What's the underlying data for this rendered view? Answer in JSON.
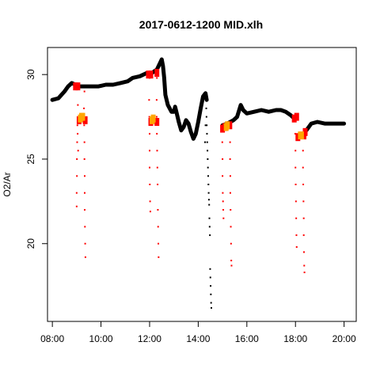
{
  "chart_data": {
    "type": "scatter",
    "title": "2017-0612-1200 MID.xlh",
    "xlabel": "",
    "ylabel": "O2/Ar",
    "xlim": [
      7.8,
      20.5
    ],
    "ylim": [
      15.4,
      31.6
    ],
    "x_ticks": [
      {
        "value": 8,
        "label": "08:00"
      },
      {
        "value": 10,
        "label": "10:00"
      },
      {
        "value": 12,
        "label": "12:00"
      },
      {
        "value": 14,
        "label": "14:00"
      },
      {
        "value": 16,
        "label": "16:00"
      },
      {
        "value": 18,
        "label": "18:00"
      },
      {
        "value": 20,
        "label": "20:00"
      }
    ],
    "y_ticks": [
      {
        "value": 20,
        "label": "20"
      },
      {
        "value": 25,
        "label": "25"
      },
      {
        "value": 30,
        "label": "30"
      }
    ],
    "grid": false,
    "colors": {
      "main": "#000000",
      "spike": "#ff0000",
      "highlight": "#ffa500"
    },
    "series": [
      {
        "role": "main",
        "color": "#000000",
        "points": [
          [
            8.0,
            28.5
          ],
          [
            8.25,
            28.6
          ],
          [
            8.5,
            29.0
          ],
          [
            8.65,
            29.3
          ],
          [
            8.8,
            29.5
          ],
          [
            8.95,
            29.4
          ],
          [
            9.05,
            29.3
          ],
          [
            9.35,
            29.3
          ],
          [
            9.6,
            29.3
          ],
          [
            9.9,
            29.3
          ],
          [
            10.2,
            29.4
          ],
          [
            10.5,
            29.4
          ],
          [
            10.8,
            29.5
          ],
          [
            11.1,
            29.6
          ],
          [
            11.3,
            29.8
          ],
          [
            11.6,
            29.9
          ],
          [
            11.9,
            30.1
          ],
          [
            12.0,
            30.0
          ],
          [
            12.3,
            30.3
          ],
          [
            12.4,
            30.6
          ],
          [
            12.5,
            30.9
          ],
          [
            12.55,
            30.5
          ],
          [
            12.6,
            29.8
          ],
          [
            12.65,
            28.8
          ],
          [
            12.75,
            28.2
          ],
          [
            12.9,
            27.8
          ],
          [
            13.0,
            27.8
          ],
          [
            13.05,
            28.1
          ],
          [
            13.1,
            27.8
          ],
          [
            13.2,
            27.2
          ],
          [
            13.3,
            26.7
          ],
          [
            13.4,
            26.9
          ],
          [
            13.5,
            27.3
          ],
          [
            13.6,
            27.1
          ],
          [
            13.7,
            26.6
          ],
          [
            13.8,
            26.2
          ],
          [
            13.9,
            26.5
          ],
          [
            14.0,
            27.2
          ],
          [
            14.1,
            28.0
          ],
          [
            14.2,
            28.7
          ],
          [
            14.3,
            28.9
          ],
          [
            14.35,
            28.5
          ],
          [
            15.0,
            27.0
          ],
          [
            15.2,
            27.1
          ],
          [
            15.45,
            27.3
          ],
          [
            15.6,
            27.5
          ],
          [
            15.75,
            28.2
          ],
          [
            15.85,
            27.9
          ],
          [
            16.0,
            27.7
          ],
          [
            16.3,
            27.8
          ],
          [
            16.6,
            27.9
          ],
          [
            16.9,
            27.8
          ],
          [
            17.2,
            27.9
          ],
          [
            17.4,
            27.9
          ],
          [
            17.6,
            27.8
          ],
          [
            17.8,
            27.6
          ],
          [
            17.95,
            27.4
          ],
          [
            18.45,
            26.7
          ],
          [
            18.65,
            27.1
          ],
          [
            18.9,
            27.2
          ],
          [
            19.2,
            27.1
          ],
          [
            19.5,
            27.1
          ],
          [
            19.8,
            27.1
          ],
          [
            20.0,
            27.1
          ]
        ]
      },
      {
        "role": "spike",
        "color": "#000000",
        "points": [
          [
            14.33,
            28.0
          ],
          [
            14.34,
            27.5
          ],
          [
            14.35,
            27.0
          ],
          [
            14.36,
            26.5
          ],
          [
            14.37,
            26.0
          ],
          [
            14.38,
            25.5
          ],
          [
            14.39,
            25.0
          ],
          [
            14.4,
            24.5
          ],
          [
            14.41,
            24.0
          ],
          [
            14.42,
            23.5
          ],
          [
            14.43,
            23.0
          ],
          [
            14.44,
            22.6
          ],
          [
            14.45,
            22.3
          ],
          [
            14.46,
            21.5
          ],
          [
            14.47,
            21.0
          ],
          [
            14.48,
            20.5
          ],
          [
            14.49,
            18.5
          ],
          [
            14.5,
            18.0
          ],
          [
            14.51,
            17.5
          ],
          [
            14.52,
            17.0
          ],
          [
            14.53,
            16.5
          ],
          [
            14.54,
            16.2
          ],
          [
            14.3,
            27.0
          ],
          [
            14.28,
            26.0
          ]
        ]
      },
      {
        "role": "spike",
        "color": "#ff0000",
        "points": [
          [
            9.0,
            29.2
          ],
          [
            9.05,
            28.2
          ],
          [
            9.03,
            27.0
          ],
          [
            9.02,
            26.0
          ],
          [
            9.01,
            25.0
          ],
          [
            9.01,
            24.0
          ],
          [
            9.0,
            23.0
          ],
          [
            9.0,
            22.2
          ],
          [
            9.04,
            26.5
          ],
          [
            9.06,
            25.5
          ],
          [
            9.32,
            29.0
          ],
          [
            9.3,
            28.0
          ],
          [
            9.31,
            27.0
          ],
          [
            9.32,
            26.0
          ],
          [
            9.32,
            25.0
          ],
          [
            9.33,
            24.0
          ],
          [
            9.33,
            23.0
          ],
          [
            9.33,
            22.0
          ],
          [
            9.34,
            21.0
          ],
          [
            9.35,
            20.0
          ],
          [
            9.36,
            19.2
          ],
          [
            12.0,
            29.8
          ],
          [
            11.98,
            28.5
          ],
          [
            11.99,
            27.5
          ],
          [
            12.0,
            26.5
          ],
          [
            12.0,
            25.5
          ],
          [
            12.0,
            24.5
          ],
          [
            12.01,
            23.5
          ],
          [
            12.02,
            22.5
          ],
          [
            12.03,
            21.9
          ],
          [
            12.3,
            29.8
          ],
          [
            12.29,
            28.5
          ],
          [
            12.29,
            27.5
          ],
          [
            12.3,
            26.5
          ],
          [
            12.31,
            25.5
          ],
          [
            12.32,
            24.5
          ],
          [
            12.33,
            23.5
          ],
          [
            12.34,
            22.0
          ],
          [
            12.35,
            21.0
          ],
          [
            12.36,
            20.0
          ],
          [
            12.37,
            19.2
          ],
          [
            15.0,
            26.7
          ],
          [
            14.99,
            26.0
          ],
          [
            15.0,
            25.0
          ],
          [
            15.0,
            24.0
          ],
          [
            15.01,
            23.0
          ],
          [
            15.02,
            22.5
          ],
          [
            15.03,
            22.0
          ],
          [
            15.04,
            21.5
          ],
          [
            15.3,
            27.0
          ],
          [
            15.31,
            26.0
          ],
          [
            15.31,
            25.0
          ],
          [
            15.32,
            24.0
          ],
          [
            15.32,
            23.0
          ],
          [
            15.33,
            22.0
          ],
          [
            15.34,
            21.0
          ],
          [
            15.35,
            20.0
          ],
          [
            15.36,
            19.0
          ],
          [
            15.37,
            18.7
          ],
          [
            18.0,
            27.3
          ],
          [
            17.99,
            26.5
          ],
          [
            18.0,
            25.5
          ],
          [
            18.0,
            24.5
          ],
          [
            18.01,
            23.5
          ],
          [
            18.02,
            22.5
          ],
          [
            18.03,
            21.5
          ],
          [
            18.04,
            20.5
          ],
          [
            18.05,
            19.8
          ],
          [
            18.3,
            26.3
          ],
          [
            18.31,
            25.5
          ],
          [
            18.31,
            24.5
          ],
          [
            18.32,
            23.5
          ],
          [
            18.33,
            22.5
          ],
          [
            18.34,
            21.5
          ],
          [
            18.34,
            20.5
          ],
          [
            18.35,
            19.5
          ],
          [
            18.36,
            18.7
          ],
          [
            18.37,
            18.3
          ]
        ]
      },
      {
        "role": "band",
        "color": "#ff0000",
        "points": [
          [
            8.95,
            29.3
          ],
          [
            9.05,
            29.3
          ],
          [
            9.1,
            27.3
          ],
          [
            9.35,
            27.3
          ],
          [
            11.95,
            30.0
          ],
          [
            12.05,
            30.0
          ],
          [
            12.05,
            27.2
          ],
          [
            12.3,
            27.2
          ],
          [
            12.3,
            30.1
          ],
          [
            15.0,
            26.8
          ],
          [
            15.1,
            26.9
          ],
          [
            15.3,
            27.0
          ],
          [
            17.95,
            27.4
          ],
          [
            18.05,
            27.5
          ],
          [
            18.1,
            26.3
          ],
          [
            18.35,
            26.4
          ],
          [
            18.4,
            26.6
          ]
        ]
      },
      {
        "role": "highlight",
        "color": "#ffa500",
        "points": [
          [
            9.15,
            27.4
          ],
          [
            9.2,
            27.5
          ],
          [
            9.25,
            27.5
          ],
          [
            12.1,
            27.3
          ],
          [
            12.15,
            27.4
          ],
          [
            15.15,
            26.9
          ],
          [
            15.2,
            27.0
          ],
          [
            18.2,
            26.4
          ],
          [
            18.25,
            26.4
          ]
        ]
      }
    ]
  }
}
